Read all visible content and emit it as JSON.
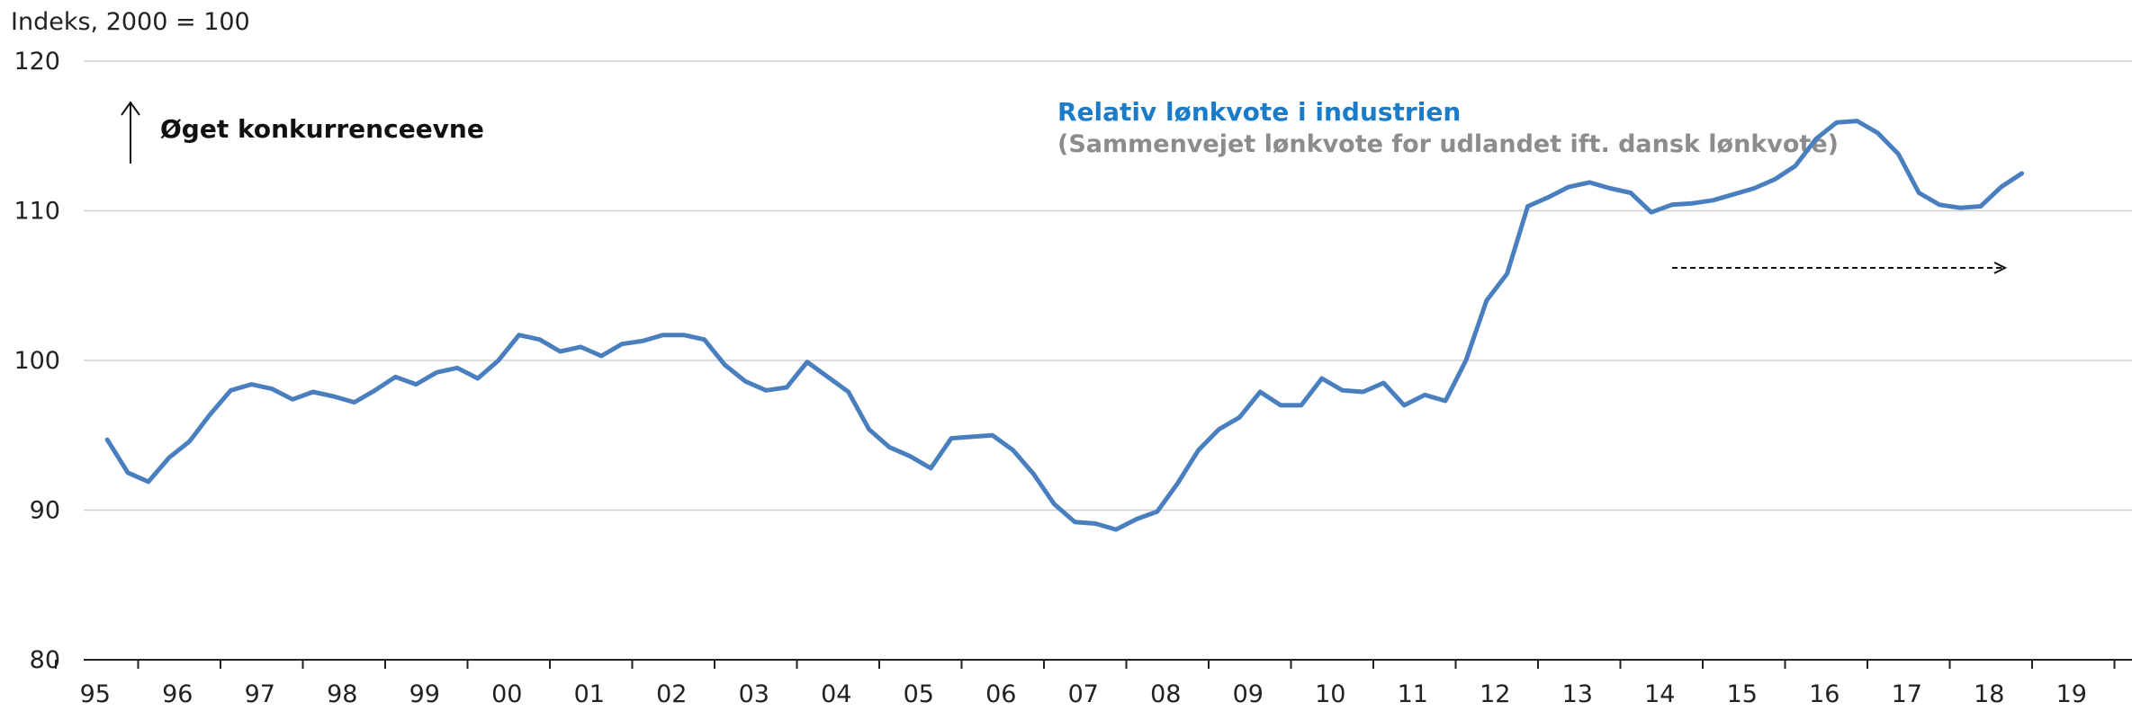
{
  "chart_data": {
    "type": "line",
    "ylabel": "Indeks, 2000 = 100",
    "ylim": [
      80,
      120
    ],
    "yticks": [
      80,
      90,
      100,
      110,
      120
    ],
    "xtick_labels": [
      "95",
      "96",
      "97",
      "98",
      "99",
      "00",
      "01",
      "02",
      "03",
      "04",
      "05",
      "06",
      "07",
      "08",
      "09",
      "10",
      "11",
      "12",
      "13",
      "14",
      "15",
      "16",
      "17",
      "18",
      "19"
    ],
    "grid": true,
    "annotation": "Øget konkurrenceevne",
    "legend": {
      "title": "Relativ lønkvote i industrien",
      "subtitle": "(Sammenvejet lønkvote for udlandet ift. dansk lønkvote)",
      "title_color": "#1a7cc9",
      "subtitle_color": "#8c8c8c"
    },
    "series": [
      {
        "color": "#4a7fbf",
        "x_start_year": 1995,
        "x_start_quarter": 3,
        "values": [
          94.7,
          92.5,
          91.9,
          93.5,
          94.6,
          96.4,
          98.0,
          98.4,
          98.1,
          97.4,
          97.9,
          97.6,
          97.2,
          98.0,
          98.9,
          98.4,
          99.2,
          99.5,
          98.8,
          100.0,
          101.7,
          101.4,
          100.6,
          100.9,
          100.3,
          101.1,
          101.3,
          101.7,
          101.7,
          101.4,
          99.7,
          98.6,
          98.0,
          98.2,
          99.9,
          98.9,
          97.9,
          95.4,
          94.2,
          93.6,
          92.8,
          94.8,
          94.9,
          95.0,
          94.0,
          92.4,
          90.4,
          89.2,
          89.1,
          88.7,
          89.4,
          89.9,
          91.8,
          94.0,
          95.4,
          96.2,
          97.9,
          97.0,
          97.0,
          98.8,
          98.0,
          97.9,
          98.5,
          97.0,
          97.7,
          97.3,
          100.0,
          104.0,
          105.8,
          110.3,
          110.9,
          111.6,
          111.9,
          111.5,
          111.2,
          109.9,
          110.4,
          110.5,
          110.7,
          111.1,
          111.5,
          112.1,
          113.0,
          114.8,
          115.9,
          116.0,
          115.2,
          113.8,
          111.2,
          110.4,
          110.2,
          110.3,
          111.6,
          112.5
        ]
      }
    ]
  }
}
